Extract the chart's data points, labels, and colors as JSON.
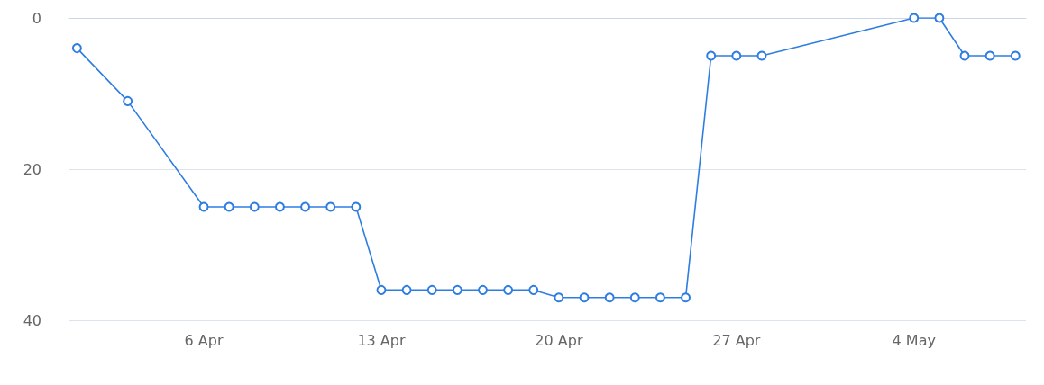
{
  "chart_data": {
    "type": "line",
    "x": [
      "--04-01",
      "--04-03",
      "--04-06",
      "--04-07",
      "--04-08",
      "--04-09",
      "--04-10",
      "--04-11",
      "--04-12",
      "--04-13",
      "--04-14",
      "--04-15",
      "--04-16",
      "--04-17",
      "--04-18",
      "--04-19",
      "--04-20",
      "--04-21",
      "--04-22",
      "--04-23",
      "--04-24",
      "--04-25",
      "--04-26",
      "--04-27",
      "--04-28",
      "--05-04",
      "--05-05",
      "--05-06",
      "--05-07",
      "--05-08"
    ],
    "series": [
      {
        "color": "#2e7de1",
        "values": [
          4,
          11,
          25,
          25,
          25,
          25,
          25,
          25,
          25,
          36,
          36,
          36,
          36,
          36,
          36,
          36,
          37,
          37,
          37,
          37,
          37,
          37,
          5,
          5,
          5,
          0,
          0,
          5,
          5,
          5
        ]
      }
    ],
    "xlim": [
      "--03-31T16:00",
      "--05-08T10:00"
    ],
    "xticks": [
      {
        "value": "--04-06",
        "label": "6 Apr"
      },
      {
        "value": "--04-13",
        "label": "13 Apr"
      },
      {
        "value": "--04-20",
        "label": "20 Apr"
      },
      {
        "value": "--04-27",
        "label": "27 Apr"
      },
      {
        "value": "--05-04",
        "label": "4 May"
      }
    ],
    "ylim": [
      40,
      0
    ],
    "yticks": [
      0,
      20,
      40
    ],
    "grid": "y",
    "marker": "circle",
    "line_style": "solid"
  }
}
